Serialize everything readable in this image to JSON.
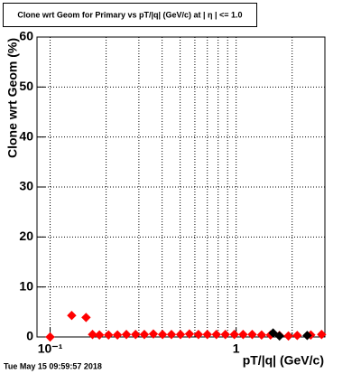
{
  "chart_data": {
    "type": "scatter",
    "title": "Clone wrt Geom for Primary vs pT/|q| (GeV/c) at | η | <= 1.0",
    "x_label": "pT/|q| (GeV/c)",
    "y_label": "Clone wrt Geom (%)",
    "timestamp": "Tue May 15 09:59:57 2018",
    "xscale": "log",
    "grid": true,
    "xlim": [
      0.085,
      3
    ],
    "ylim": [
      0,
      60
    ],
    "xticks": [
      {
        "value": 0.1,
        "label": "10⁻¹"
      },
      1
    ],
    "xminor": [
      0.2,
      0.3,
      0.4,
      0.5,
      0.6,
      0.7,
      0.8,
      0.9,
      2
    ],
    "yticks": [
      0,
      10,
      20,
      30,
      40,
      50,
      60
    ],
    "series": [
      {
        "color": "#ff0000",
        "x": [
          0.1,
          0.1306,
          0.156,
          0.169,
          0.184,
          0.206,
          0.23,
          0.257,
          0.288,
          0.321,
          0.359,
          0.402,
          0.449,
          0.502,
          0.561,
          0.627,
          0.7,
          0.783,
          0.875,
          0.978,
          1.09,
          1.22,
          1.37,
          1.53,
          1.71,
          1.91,
          2.13,
          2.52,
          2.88
        ],
        "values": [
          0,
          4.3,
          3.9,
          0.5,
          0.4,
          0.4,
          0.4,
          0.5,
          0.5,
          0.5,
          0.6,
          0.5,
          0.5,
          0.5,
          0.6,
          0.5,
          0.5,
          0.5,
          0.5,
          0.5,
          0.5,
          0.5,
          0.4,
          0.4,
          0.3,
          0.2,
          0.3,
          0.4,
          0.5
        ]
      },
      {
        "color": "#000000",
        "x": [
          1.58,
          1.71,
          2.41
        ],
        "values": [
          0.8,
          0.2,
          0.3
        ]
      }
    ]
  }
}
